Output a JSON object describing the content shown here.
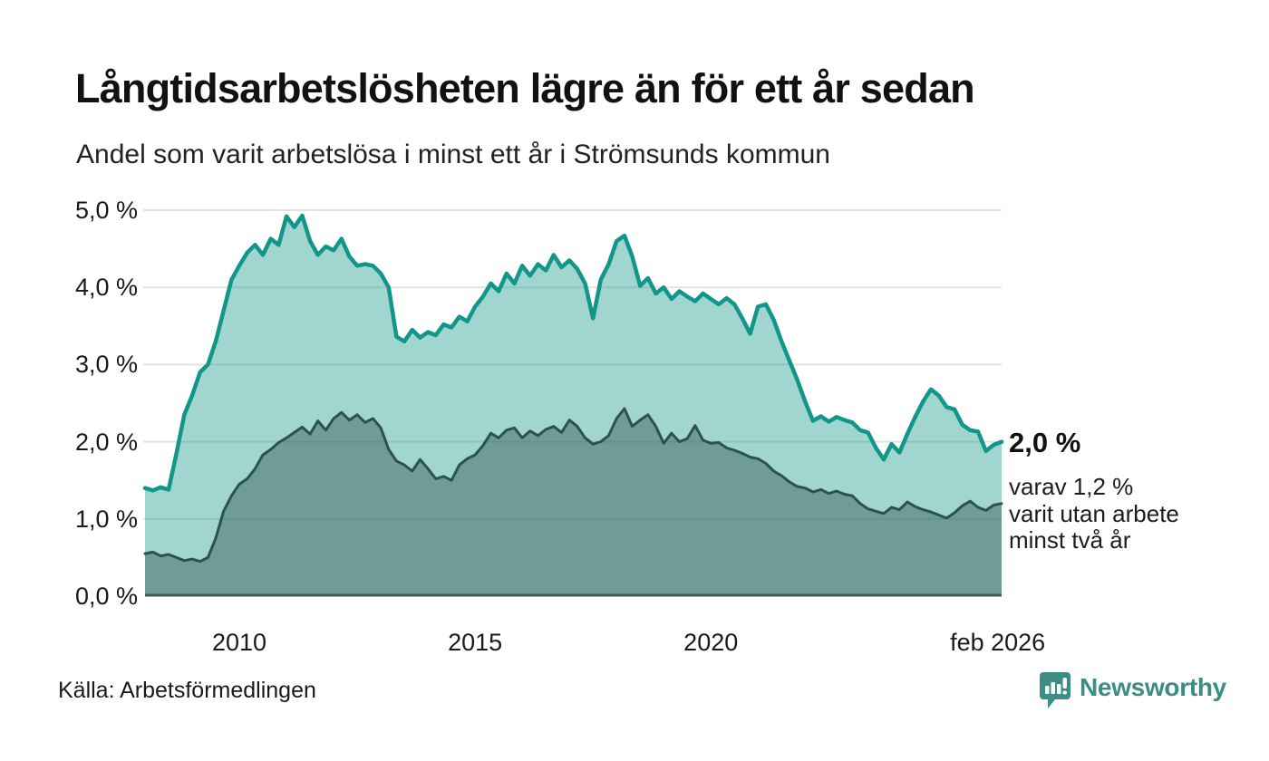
{
  "header": {
    "title": "Långtidsarbetslösheten lägre än för ett år sedan",
    "subtitle": "Andel som varit arbetslösa i minst ett år i Strömsunds kommun"
  },
  "colors": {
    "title_text": "#111111",
    "body_text": "#1d1d1d",
    "grid": "#e2e2e2",
    "baseline": "#3c5955",
    "series1_line": "#12968a",
    "series1_fill": "rgba(18,150,138,0.40)",
    "series2_line": "#2e514e",
    "series2_fill": "rgba(43,79,76,0.42)",
    "brand_teal": "#3d8c85"
  },
  "chart_data": {
    "type": "area",
    "title": "Långtidsarbetslösheten lägre än för ett år sedan",
    "subtitle": "Andel som varit arbetslösa i minst ett år i Strömsunds kommun",
    "unit": "%",
    "ylim": [
      0,
      5.0
    ],
    "grid": true,
    "x_start": 2008.0,
    "x_step_years": 0.166667,
    "y_ticks": [
      {
        "value": 5.0,
        "label": "5,0 %"
      },
      {
        "value": 4.0,
        "label": "4,0 %"
      },
      {
        "value": 3.0,
        "label": "3,0 %"
      },
      {
        "value": 2.0,
        "label": "2,0 %"
      },
      {
        "value": 1.0,
        "label": "1,0 %"
      },
      {
        "value": 0.0,
        "label": "0,0 %"
      }
    ],
    "x_ticks": [
      {
        "year": 2010,
        "label": "2010"
      },
      {
        "year": 2015,
        "label": "2015"
      },
      {
        "year": 2020,
        "label": "2020"
      },
      {
        "year": 2026.083,
        "label": "feb 2026"
      }
    ],
    "series": [
      {
        "name": "Arbetslösa minst ett år",
        "line_color": "#12968a",
        "fill_color": "rgba(18,150,138,0.40)",
        "line_width": 4.5,
        "values": [
          1.4,
          1.37,
          1.41,
          1.38,
          1.85,
          2.35,
          2.6,
          2.9,
          3.0,
          3.3,
          3.7,
          4.1,
          4.28,
          4.45,
          4.55,
          4.42,
          4.63,
          4.55,
          4.92,
          4.78,
          4.93,
          4.6,
          4.42,
          4.53,
          4.48,
          4.63,
          4.4,
          4.28,
          4.3,
          4.28,
          4.18,
          4.0,
          3.36,
          3.3,
          3.45,
          3.35,
          3.42,
          3.38,
          3.52,
          3.48,
          3.62,
          3.56,
          3.75,
          3.88,
          4.05,
          3.95,
          4.18,
          4.05,
          4.28,
          4.15,
          4.3,
          4.22,
          4.42,
          4.26,
          4.35,
          4.24,
          4.05,
          3.6,
          4.1,
          4.3,
          4.6,
          4.67,
          4.4,
          4.02,
          4.12,
          3.92,
          4.0,
          3.85,
          3.95,
          3.88,
          3.82,
          3.92,
          3.85,
          3.78,
          3.86,
          3.78,
          3.6,
          3.4,
          3.75,
          3.78,
          3.58,
          3.3,
          3.05,
          2.8,
          2.52,
          2.27,
          2.33,
          2.26,
          2.32,
          2.28,
          2.25,
          2.15,
          2.12,
          1.92,
          1.77,
          1.97,
          1.86,
          2.1,
          2.32,
          2.52,
          2.68,
          2.6,
          2.45,
          2.42,
          2.22,
          2.15,
          2.13,
          1.88,
          1.96,
          2.0
        ]
      },
      {
        "name": "varav utan arbete minst två år",
        "line_color": "#2e514e",
        "fill_color": "rgba(43,79,76,0.42)",
        "line_width": 3,
        "values": [
          0.55,
          0.57,
          0.52,
          0.54,
          0.5,
          0.46,
          0.48,
          0.45,
          0.5,
          0.75,
          1.1,
          1.3,
          1.45,
          1.52,
          1.65,
          1.83,
          1.9,
          1.99,
          2.05,
          2.12,
          2.19,
          2.1,
          2.27,
          2.15,
          2.3,
          2.38,
          2.28,
          2.35,
          2.25,
          2.3,
          2.18,
          1.9,
          1.75,
          1.7,
          1.62,
          1.77,
          1.65,
          1.52,
          1.55,
          1.5,
          1.7,
          1.78,
          1.83,
          1.95,
          2.11,
          2.05,
          2.15,
          2.18,
          2.05,
          2.14,
          2.08,
          2.16,
          2.2,
          2.12,
          2.28,
          2.2,
          2.05,
          1.97,
          2.0,
          2.08,
          2.3,
          2.43,
          2.2,
          2.28,
          2.35,
          2.2,
          1.98,
          2.11,
          2.0,
          2.04,
          2.21,
          2.02,
          1.98,
          1.99,
          1.92,
          1.89,
          1.85,
          1.8,
          1.78,
          1.72,
          1.62,
          1.56,
          1.48,
          1.42,
          1.4,
          1.35,
          1.38,
          1.33,
          1.36,
          1.32,
          1.3,
          1.2,
          1.13,
          1.1,
          1.07,
          1.15,
          1.12,
          1.22,
          1.16,
          1.12,
          1.09,
          1.05,
          1.01,
          1.08,
          1.17,
          1.23,
          1.15,
          1.11,
          1.18,
          1.2
        ]
      }
    ],
    "end_annotation": {
      "headline": "2,0 %",
      "lines": [
        "varav 1,2 %",
        "varit utan arbete",
        "minst två år"
      ]
    }
  },
  "footer": {
    "source": "Källa: Arbetsförmedlingen",
    "brand": "Newsworthy"
  }
}
